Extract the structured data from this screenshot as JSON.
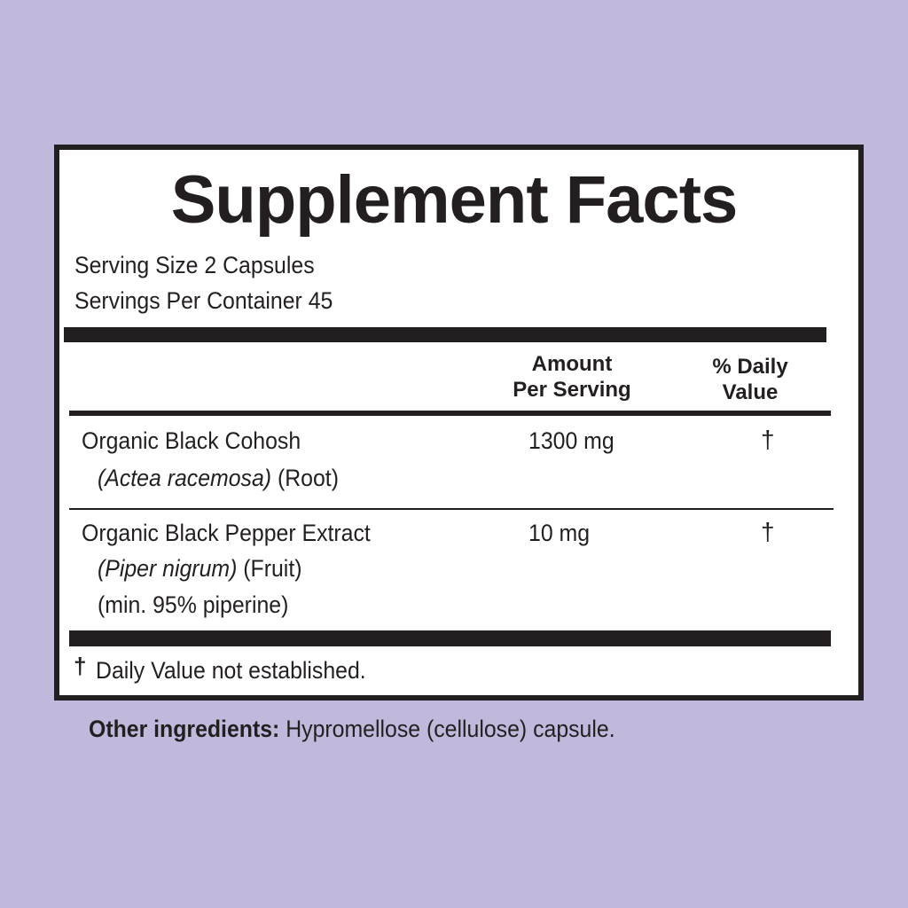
{
  "title": "Supplement Facts",
  "serving_size": "Serving Size 2 Capsules",
  "servings_per_container": "Servings Per Container 45",
  "headers": {
    "amount": [
      "Amount",
      "Per Serving"
    ],
    "daily_value": [
      "% Daily",
      "Value"
    ]
  },
  "rows": [
    {
      "name": "Organic Black Cohosh",
      "latin": "(Actea racemosa)",
      "part": "(Root)",
      "extra": null,
      "amount": "1300 mg",
      "dv": "†"
    },
    {
      "name": "Organic Black Pepper Extract",
      "latin": "(Piper nigrum)",
      "part": "(Fruit)",
      "extra": "(min. 95% piperine)",
      "amount": "10 mg",
      "dv": "†"
    }
  ],
  "footnote": {
    "symbol": "†",
    "text": "Daily Value not established."
  },
  "other_ingredients": {
    "label": "Other ingredients:",
    "text": "Hypromellose (cellulose) capsule."
  }
}
